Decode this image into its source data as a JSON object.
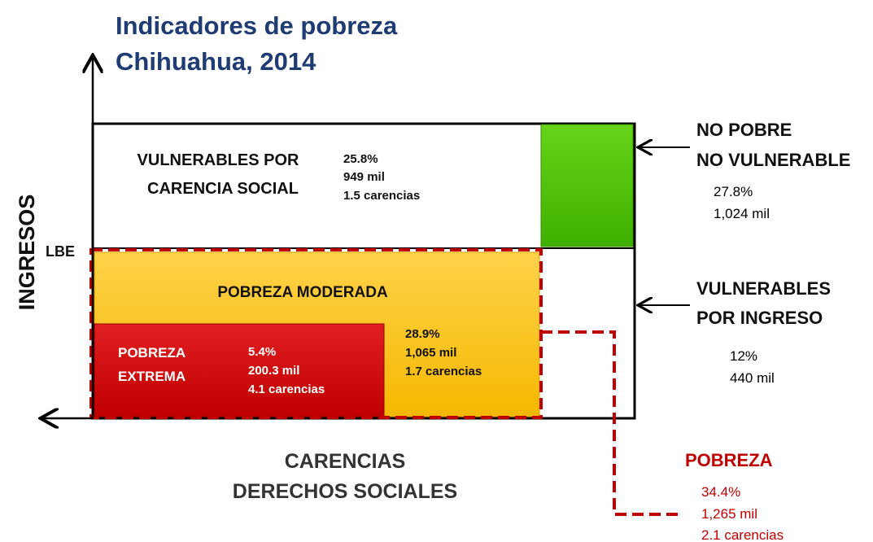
{
  "header": {
    "title": [
      "Indicadores de pobreza",
      "Chihuahua, 2014"
    ]
  },
  "axes": {
    "y_label": "INGRESOS",
    "x_label": [
      "CARENCIAS",
      "DERECHOS SOCIALES"
    ],
    "line_label": "LBE"
  },
  "groups": {
    "vulnerables_carencia": {
      "name": [
        "VULNERABLES POR",
        "CARENCIA SOCIAL"
      ],
      "stats": [
        "25.8%",
        "949 mil",
        "1.5 carencias"
      ]
    },
    "no_pobre": {
      "name": [
        "NO POBRE",
        "NO VULNERABLE"
      ],
      "stats": [
        "27.8%",
        "1,024 mil"
      ]
    },
    "vulnerables_ingreso": {
      "name": [
        "VULNERABLES",
        "POR INGRESO"
      ],
      "stats": [
        "12%",
        "440 mil"
      ]
    },
    "pobreza_moderada": {
      "name": [
        "POBREZA MODERADA"
      ],
      "stats": [
        "28.9%",
        "1,065 mil",
        "1.7 carencias"
      ]
    },
    "pobreza_extrema": {
      "name": [
        "POBREZA",
        "EXTREMA"
      ],
      "stats": [
        "5.4%",
        "200.3 mil",
        "4.1 carencias"
      ]
    },
    "pobreza": {
      "name": [
        "POBREZA"
      ],
      "stats": [
        "34.4%",
        "1,265 mil",
        "2.1 carencias"
      ]
    }
  }
}
